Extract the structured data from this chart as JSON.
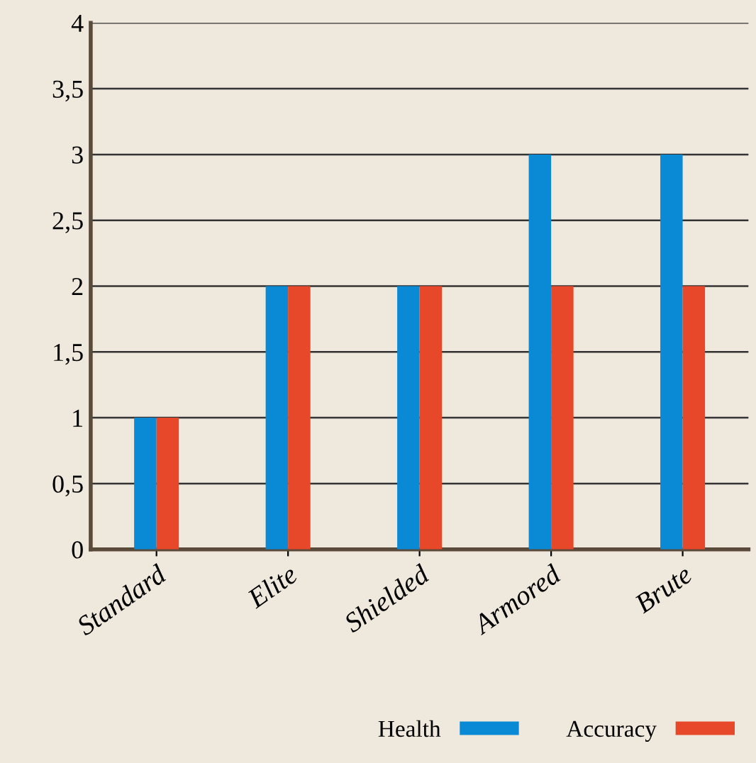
{
  "chart_data": {
    "type": "bar",
    "categories": [
      "Standard",
      "Elite",
      "Shielded",
      "Armored",
      "Brute"
    ],
    "series": [
      {
        "name": "Health",
        "color": "#0a8ad4",
        "values": [
          1,
          2,
          2,
          3,
          3
        ]
      },
      {
        "name": "Accuracy",
        "color": "#e8482a",
        "values": [
          1,
          2,
          2,
          2,
          2
        ]
      }
    ],
    "ylim": [
      0,
      4
    ],
    "yticks": [
      0,
      {
        "value": 0.5,
        "label": "0,5"
      },
      1,
      {
        "value": 1.5,
        "label": "1,5"
      },
      2,
      {
        "value": 2.5,
        "label": "2,5"
      },
      3,
      {
        "value": 3.5,
        "label": "3,5"
      },
      4
    ],
    "grid": "y",
    "legend": "bottom right"
  }
}
